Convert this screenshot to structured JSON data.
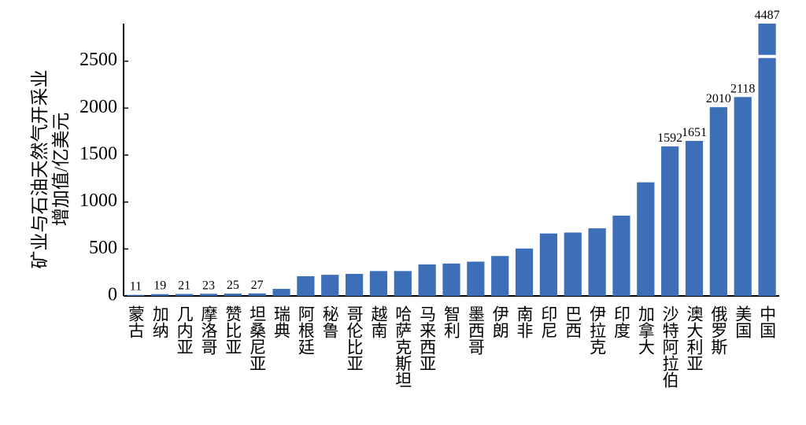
{
  "chart_data": {
    "type": "bar",
    "ylabel": [
      "矿业与石油天然气开采业",
      "增加值/亿美元"
    ],
    "categories": [
      "蒙古",
      "加纳",
      "几内亚",
      "摩洛哥",
      "赞比亚",
      "坦桑尼亚",
      "瑞典",
      "阿根廷",
      "秘鲁",
      "哥伦比亚",
      "越南",
      "哈萨克斯坦",
      "马来西亚",
      "智利",
      "墨西哥",
      "伊朗",
      "南非",
      "印尼",
      "巴西",
      "伊拉克",
      "印度",
      "加拿大",
      "沙特阿拉伯",
      "澳大利亚",
      "俄罗斯",
      "美国",
      "中国"
    ],
    "values": [
      11,
      19,
      21,
      23,
      25,
      27,
      75,
      210,
      225,
      235,
      265,
      265,
      335,
      345,
      365,
      425,
      505,
      665,
      675,
      720,
      855,
      1210,
      1592,
      1651,
      2010,
      2118,
      4487
    ],
    "value_labels": [
      "11",
      "19",
      "21",
      "23",
      "25",
      "27",
      null,
      null,
      null,
      null,
      null,
      null,
      null,
      null,
      null,
      null,
      null,
      null,
      null,
      null,
      null,
      null,
      "1592",
      "1651",
      "2010",
      "2118",
      "4487"
    ],
    "color": "#3d6fb9",
    "ylim": [
      0,
      2900
    ],
    "yticks": [
      0,
      500,
      1000,
      1500,
      2000,
      2500
    ],
    "grid": false
  }
}
